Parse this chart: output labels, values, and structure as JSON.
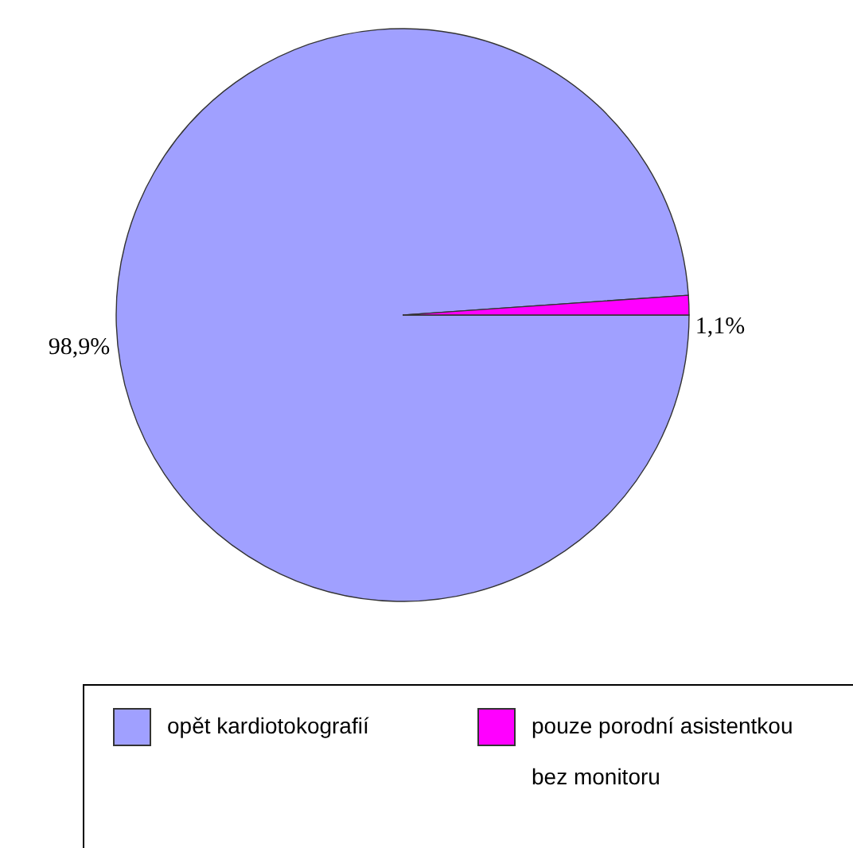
{
  "chart_data": {
    "type": "pie",
    "categories": [
      "opět kardiotokografií",
      "pouze porodní asistentkou bez monitoru"
    ],
    "values": [
      98.9,
      1.1
    ],
    "colors": [
      "#a0a0ff",
      "#ff00ff"
    ],
    "value_labels": [
      "98,9%",
      "1,1%"
    ],
    "legend": "bottom"
  }
}
